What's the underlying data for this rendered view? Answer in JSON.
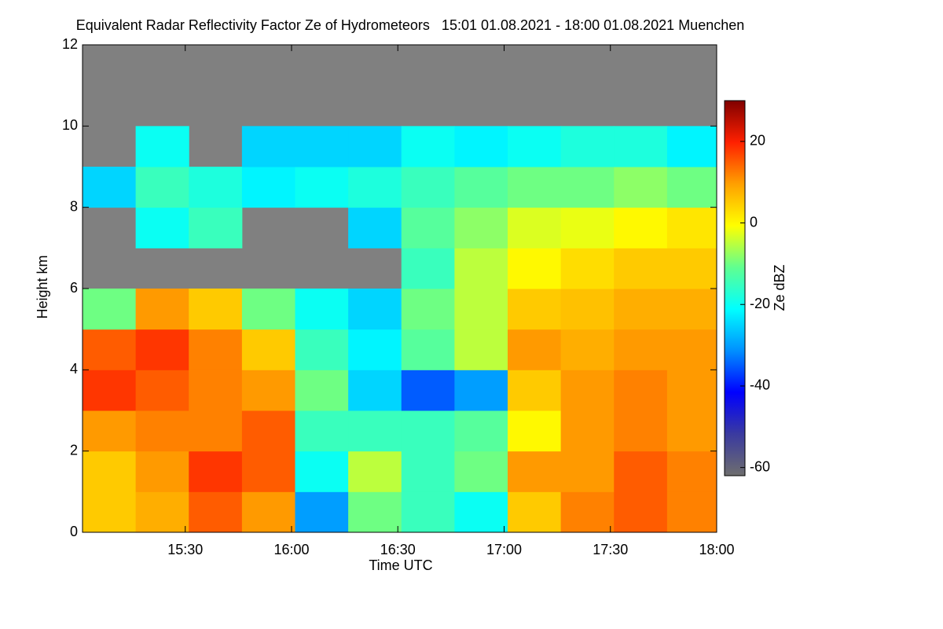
{
  "chart_data": {
    "type": "heatmap",
    "title": "Equivalent Radar Reflectivity Factor Ze of Hydrometeors   15:01 01.08.2021 - 18:00 01.08.2021 Muenchen",
    "x_label": "Time UTC",
    "y_label": "Height km",
    "colorbar_label": "Ze dBZ",
    "xlim": [
      901,
      1080
    ],
    "xticks": [
      {
        "value": 930,
        "label": "15:30"
      },
      {
        "value": 960,
        "label": "16:00"
      },
      {
        "value": 990,
        "label": "16:30"
      },
      {
        "value": 1020,
        "label": "17:00"
      },
      {
        "value": 1050,
        "label": "17:30"
      },
      {
        "value": 1080,
        "label": "18:00"
      }
    ],
    "ylim": [
      0,
      12
    ],
    "yticks": [
      0,
      2,
      4,
      6,
      8,
      10,
      12
    ],
    "x_bins": [
      901,
      916,
      931,
      946,
      961,
      976,
      991,
      1006,
      1021,
      1036,
      1051,
      1066,
      1080
    ],
    "y_bins": [
      0,
      1,
      2,
      3,
      4,
      5,
      6,
      7,
      8,
      9,
      10,
      11,
      12
    ],
    "z": [
      [
        5,
        8,
        15,
        10,
        -30,
        -10,
        -15,
        -20,
        5,
        12,
        15,
        12
      ],
      [
        5,
        10,
        18,
        15,
        -20,
        -5,
        -15,
        -10,
        10,
        10,
        15,
        12
      ],
      [
        10,
        12,
        12,
        15,
        -15,
        -15,
        -15,
        -12,
        0,
        10,
        12,
        10
      ],
      [
        18,
        15,
        12,
        10,
        -10,
        -25,
        -35,
        -30,
        5,
        10,
        12,
        10
      ],
      [
        15,
        18,
        12,
        5,
        -15,
        -22,
        -12,
        -5,
        10,
        8,
        10,
        10
      ],
      [
        -10,
        10,
        5,
        -10,
        -20,
        -25,
        -10,
        -5,
        5,
        6,
        8,
        8
      ],
      [
        null,
        null,
        null,
        null,
        null,
        null,
        -15,
        -5,
        0,
        3,
        5,
        5
      ],
      [
        null,
        -20,
        -15,
        null,
        null,
        -25,
        -12,
        -8,
        -3,
        -2,
        0,
        2
      ],
      [
        -25,
        -15,
        -18,
        -22,
        -20,
        -18,
        -15,
        -12,
        -10,
        -10,
        -8,
        -10
      ],
      [
        null,
        -20,
        null,
        -25,
        -25,
        -25,
        -20,
        -22,
        -20,
        -18,
        -18,
        -22
      ],
      [
        null,
        null,
        null,
        null,
        null,
        null,
        null,
        null,
        null,
        null,
        null,
        null
      ],
      [
        null,
        null,
        null,
        null,
        null,
        null,
        null,
        null,
        null,
        null,
        null,
        null
      ]
    ],
    "zlim": [
      -62,
      30
    ],
    "zticks": [
      -60,
      -40,
      -20,
      0,
      20
    ],
    "missing_color": "#808080",
    "colormap": [
      "#6e6e6e",
      "#3a3aa0",
      "#0000ff",
      "#0090ff",
      "#00ffff",
      "#60ff90",
      "#ffff00",
      "#ffa000",
      "#ff2000",
      "#800000"
    ]
  }
}
